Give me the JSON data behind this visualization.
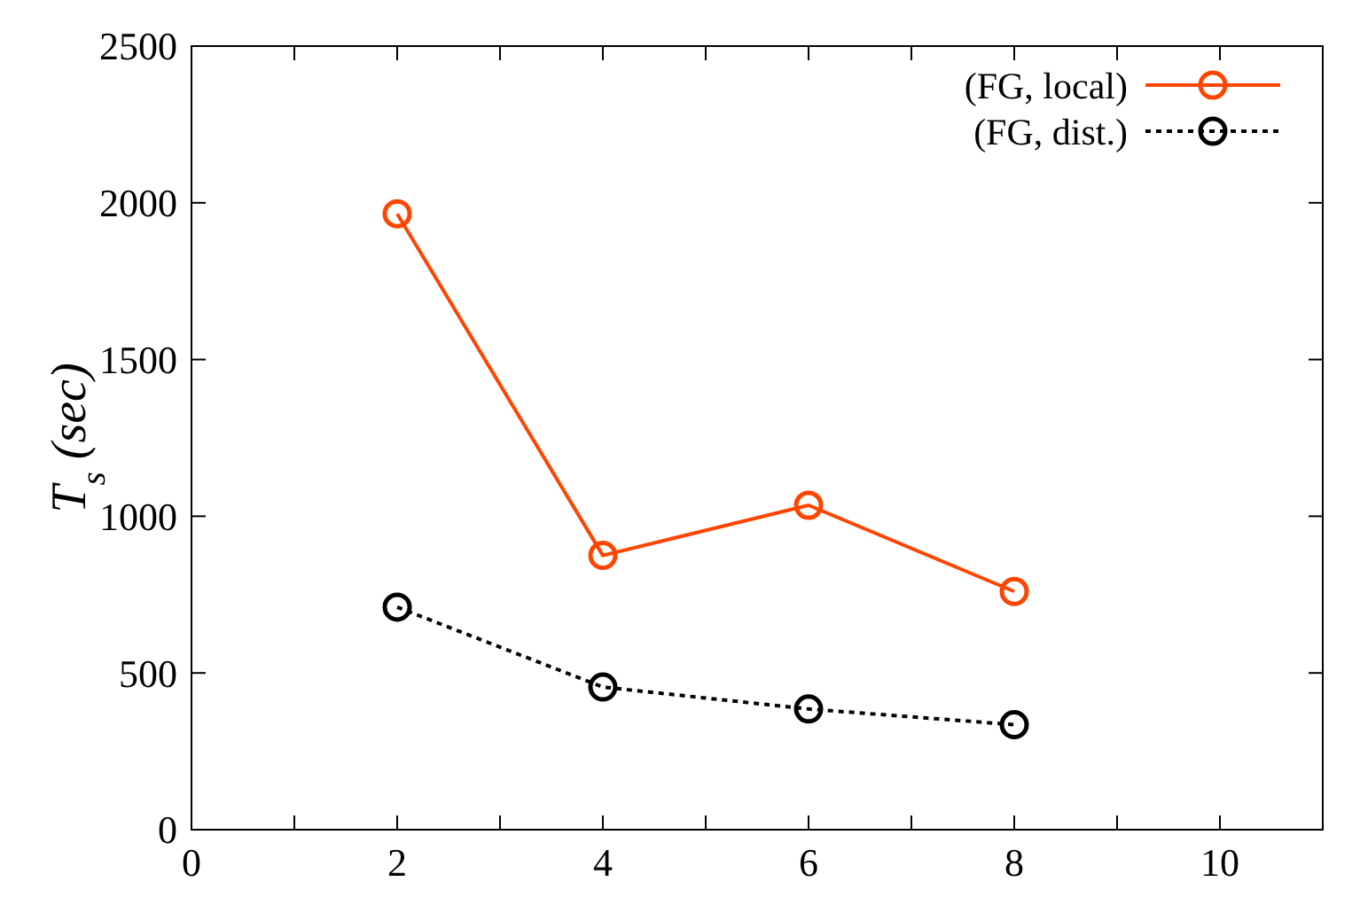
{
  "chart_data": {
    "type": "line",
    "ylabel": "T$_{s}$ (sec)",
    "x": [
      2,
      4,
      6,
      8
    ],
    "series": [
      {
        "name": "(FG, local)",
        "color": "#ff4500",
        "values": [
          1965,
          875,
          1035,
          760
        ],
        "line_style": "solid"
      },
      {
        "name": "(FG, dist.)",
        "color": "#000000",
        "values": [
          710,
          455,
          385,
          335
        ],
        "line_style": "dotted"
      }
    ],
    "xlim": [
      0,
      11
    ],
    "xticks": [
      0,
      {
        "value": 1,
        "label": null
      },
      2,
      {
        "value": 3,
        "label": null
      },
      4,
      {
        "value": 5,
        "label": null
      },
      6,
      {
        "value": 7,
        "label": null
      },
      8,
      {
        "value": 9,
        "label": null
      },
      10
    ],
    "ylim": [
      0,
      2500
    ],
    "yticks": [
      0,
      500,
      1000,
      1500,
      2000,
      2500
    ],
    "marker": "circle",
    "legend": "top right",
    "grid": false
  }
}
